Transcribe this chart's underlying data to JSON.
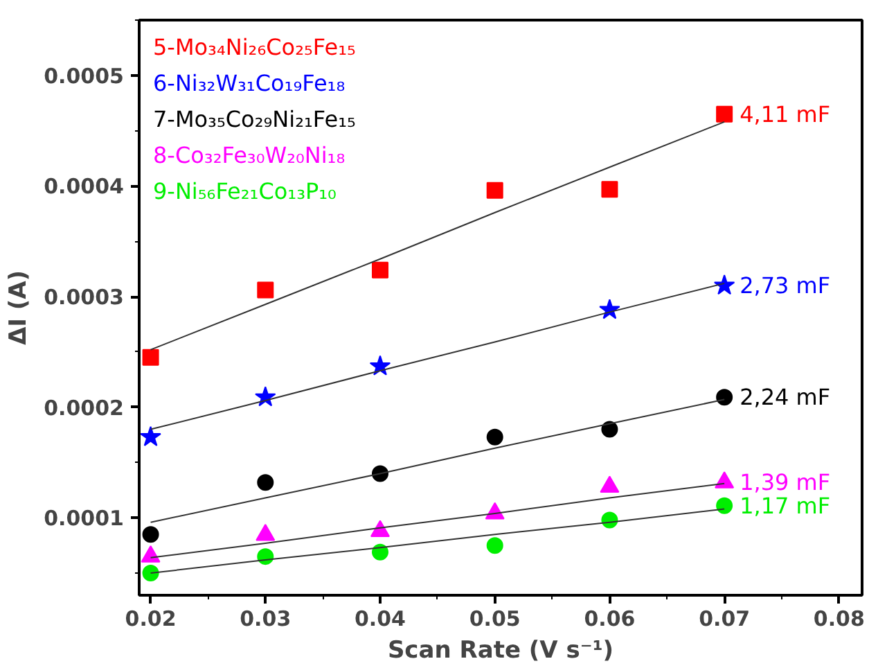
{
  "chart_data": {
    "type": "scatter",
    "xlabel": "Scan Rate (V s⁻¹)",
    "ylabel": "ΔI (A)",
    "x": [
      0.02,
      0.03,
      0.04,
      0.05,
      0.06,
      0.07
    ],
    "xlim": [
      0.019,
      0.082
    ],
    "xticks": [
      0.02,
      0.03,
      0.04,
      0.05,
      0.06,
      0.07,
      0.08
    ],
    "ylim": [
      3e-05,
      0.00055
    ],
    "yticks": [
      0.0001,
      0.0002,
      0.0003,
      0.0004,
      0.0005
    ],
    "legend": "top left",
    "grid": false,
    "series": [
      {
        "name": "5-Mo₃₄Ni₂₆Co₂₅Fe₁₅",
        "color": "#ff0000",
        "marker": "square",
        "values": [
          0.000245,
          0.000306,
          0.000324,
          0.000396,
          0.000397,
          0.000465
        ]
      },
      {
        "name": "6-Ni₃₂W₃₁Co₁₉Fe₁₈",
        "color": "#0000ff",
        "marker": "star",
        "values": [
          0.000173,
          0.000209,
          0.000237,
          null,
          0.000288,
          0.00031
        ]
      },
      {
        "name": "7-Mo₃₅Co₂₉Ni₂₁Fe₁₅",
        "color": "#000000",
        "marker": "circle",
        "values": [
          8.5e-05,
          0.000132,
          0.00014,
          0.000173,
          0.00018,
          0.000209
        ]
      },
      {
        "name": "8-Co₃₂Fe₃₀W₂₀Ni₁₈",
        "color": "#ff00ff",
        "marker": "triangle",
        "values": [
          6.5e-05,
          8.45e-05,
          8.8e-05,
          0.000104,
          0.000128,
          0.000132
        ]
      },
      {
        "name": "9-Ni₅₆Fe₂₁Co₁₃P₁₀",
        "color": "#00ee00",
        "marker": "circle",
        "values": [
          5e-05,
          6.5e-05,
          6.9e-05,
          7.5e-05,
          9.8e-05,
          0.000111
        ]
      },
      {
        "type": "line",
        "color": "#333333",
        "marker": "none",
        "values": [
          0.000252,
          0.000293,
          0.000334,
          0.000376,
          0.000417,
          0.000458
        ]
      },
      {
        "type": "line",
        "color": "#333333",
        "marker": "none",
        "values": [
          0.00018,
          0.000206,
          0.000233,
          0.000259,
          0.000286,
          0.000312
        ]
      },
      {
        "type": "line",
        "color": "#333333",
        "marker": "none",
        "values": [
          9.6e-05,
          0.000118,
          0.00014,
          0.000163,
          0.000185,
          0.000207
        ]
      },
      {
        "type": "line",
        "color": "#333333",
        "marker": "none",
        "values": [
          6.4e-05,
          7.7e-05,
          9.1e-05,
          0.000104,
          0.000118,
          0.000131
        ]
      },
      {
        "type": "line",
        "color": "#333333",
        "marker": "none",
        "values": [
          5e-05,
          6.2e-05,
          7.3e-05,
          8.5e-05,
          9.6e-05,
          0.000108
        ]
      }
    ],
    "annotations": [
      "4,11 mF",
      "2,73 mF",
      "2,24 mF",
      "1,39 mF",
      "1,17 mF"
    ]
  }
}
